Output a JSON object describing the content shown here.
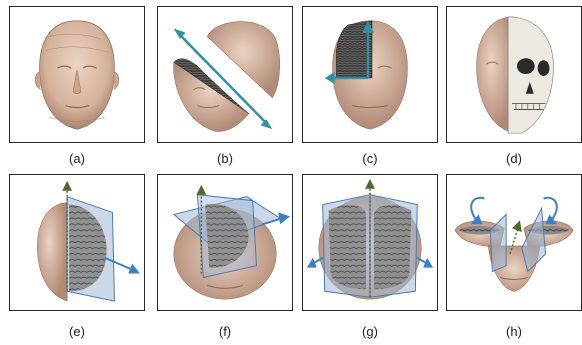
{
  "panels": [
    {
      "id": "a",
      "caption": "(a)"
    },
    {
      "id": "b",
      "caption": "(b)"
    },
    {
      "id": "c",
      "caption": "(c)"
    },
    {
      "id": "d",
      "caption": "(d)"
    },
    {
      "id": "e",
      "caption": "(e)"
    },
    {
      "id": "f",
      "caption": "(f)"
    },
    {
      "id": "g",
      "caption": "(g)"
    },
    {
      "id": "h",
      "caption": "(h)"
    }
  ],
  "colors": {
    "skin": "#d9b9a4",
    "skin_shadow": "#b48f7a",
    "cut_surface": "#3a3a3a",
    "plane_fill": "#9fb8d6",
    "plane_stroke": "#4a78b0",
    "arrow_teal": "#2e8fa6",
    "arrow_blue": "#3b7fc4",
    "axis_green": "#4e6b2e",
    "bone": "#e8e6dc",
    "frame": "#2a2a2a"
  },
  "icons": {
    "a": "head-icon",
    "b": "diagonal-cut-icon",
    "c": "quadrant-cut-icon",
    "d": "skull-icon",
    "e": "sagittal-plane-icon",
    "f": "rotated-plane-icon",
    "g": "double-plane-icon",
    "h": "rotate-open-icon"
  }
}
